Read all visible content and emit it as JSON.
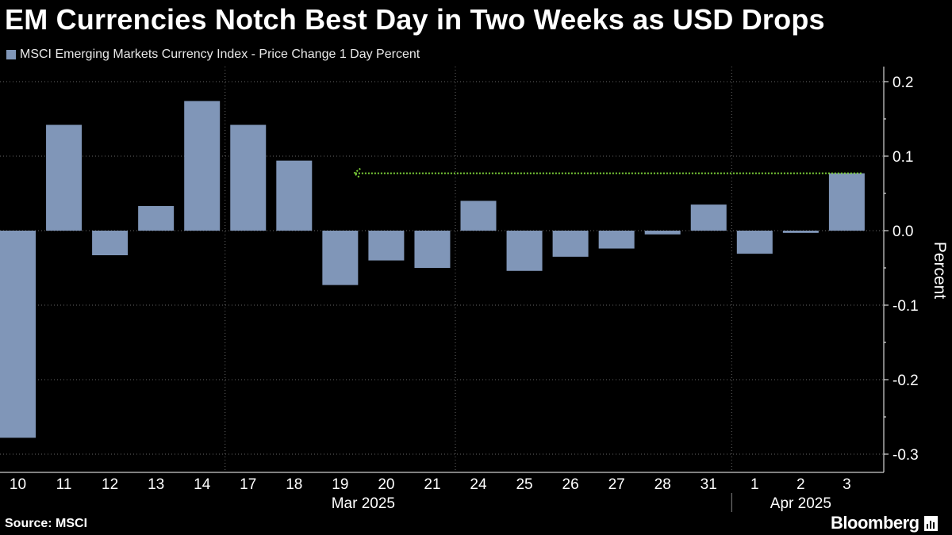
{
  "title": "EM Currencies Notch Best Day in Two Weeks as USD Drops",
  "source": "Source: MSCI",
  "brand": "Bloomberg",
  "colors": {
    "bar": "#8096b8",
    "annotation": "#7ed23a",
    "grid": "#666666",
    "background": "#000000"
  },
  "chart_data": {
    "type": "bar",
    "title": "EM Currencies Notch Best Day in Two Weeks as USD Drops",
    "series": [
      {
        "name": "MSCI Emerging Markets Currency Index - Price Change 1 Day Percent",
        "values": [
          -0.278,
          0.142,
          -0.033,
          0.033,
          0.174,
          0.142,
          0.094,
          -0.073,
          -0.04,
          -0.05,
          0.04,
          -0.054,
          -0.035,
          -0.024,
          -0.005,
          0.035,
          -0.031,
          -0.003,
          0.077
        ]
      }
    ],
    "categories": [
      "10",
      "11",
      "12",
      "13",
      "14",
      "17",
      "18",
      "19",
      "20",
      "21",
      "24",
      "25",
      "26",
      "27",
      "28",
      "31",
      "1",
      "2",
      "3"
    ],
    "month_labels": [
      {
        "label": "Mar 2025",
        "start_index": 0,
        "end_index": 15
      },
      {
        "label": "Apr 2025",
        "start_index": 16,
        "end_index": 18
      }
    ],
    "ylabel": "Percent",
    "ylim": [
      -0.33,
      0.22
    ],
    "yticks": [
      0.2,
      0.1,
      0.0,
      -0.1,
      -0.2,
      -0.3
    ],
    "ytick_labels": [
      "0.2",
      "0.1",
      "0.0",
      "-0.1",
      "-0.2",
      "-0.3"
    ],
    "x_gridline_indices": [
      4,
      9,
      15
    ],
    "annotation": {
      "type": "dotted-arrow",
      "y": 0.077,
      "from_index": 18,
      "to_index": 7.3
    },
    "axis_position": "right",
    "legend_position": "top-left",
    "grid": true
  }
}
